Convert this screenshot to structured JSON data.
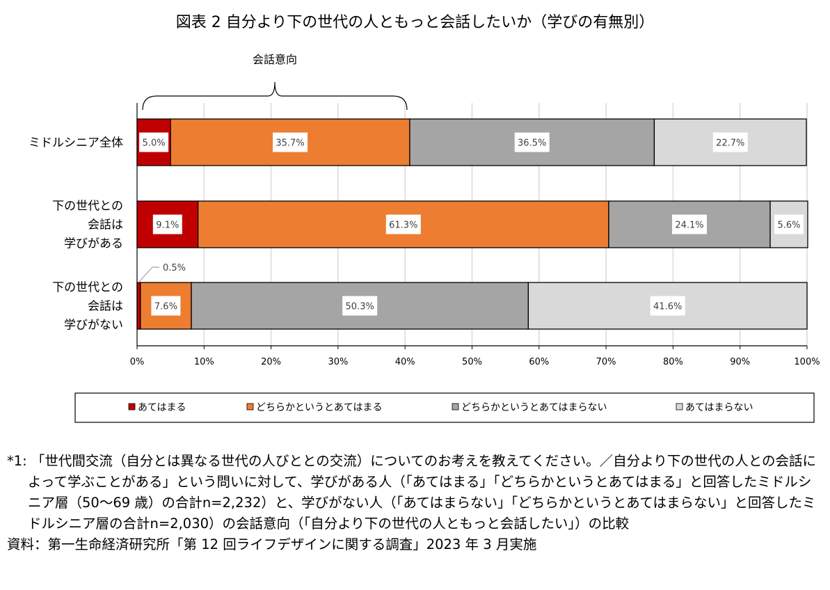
{
  "chart_data": {
    "type": "bar",
    "orientation": "horizontal",
    "stacked": true,
    "title": "図表 2  自分より下の世代の人ともっと会話したいか（学びの有無別）",
    "categories": [
      [
        "ミドルシニア全体"
      ],
      [
        "下の世代との",
        "会話は",
        "学びがある"
      ],
      [
        "下の世代との",
        "会話は",
        "学びがない"
      ]
    ],
    "series": [
      {
        "name": "あてはまる",
        "color": "#c00000",
        "values": [
          5.0,
          9.1,
          0.5
        ]
      },
      {
        "name": "どちらかというとあてはまる",
        "color": "#ed7d31",
        "values": [
          35.7,
          61.3,
          7.6
        ]
      },
      {
        "name": "どちらかというとあてはまらない",
        "color": "#a5a5a5",
        "values": [
          36.5,
          24.1,
          50.3
        ]
      },
      {
        "name": "あてはまらない",
        "color": "#d9d9d9",
        "values": [
          22.7,
          5.6,
          41.6
        ]
      }
    ],
    "data_labels": [
      [
        "5.0%",
        "35.7%",
        "36.5%",
        "22.7%"
      ],
      [
        "9.1%",
        "61.3%",
        "24.1%",
        "5.6%"
      ],
      [
        "0.5%",
        "7.6%",
        "50.3%",
        "41.6%"
      ]
    ],
    "xlim": [
      0,
      100
    ],
    "xticks": [
      "0%",
      "10%",
      "20%",
      "30%",
      "40%",
      "50%",
      "60%",
      "70%",
      "80%",
      "90%",
      "100%"
    ],
    "grid": true,
    "legend": "bottom",
    "annotation": "会話意向"
  },
  "notes": {
    "note1": "*1: 「世代間交流（自分とは異なる世代の人びととの交流）についてのお考えを教えてください。／自分より下の世代の人との会話によって学ぶことがある」という問いに対して、学びがある人（「あてはまる」「どちらかというとあてはまる」と回答したミドルシニア層（50～69 歳）の合計n=2,232）と、学びがない人（「あてはまらない」「どちらかというとあてはまらない」と回答したミドルシニア層の合計n=2,030）の会話意向（「自分より下の世代の人ともっと会話したい」）の比較",
    "source": "資料：第一生命経済研究所「第 12 回ライフデザインに関する調査」2023 年 3 月実施"
  }
}
